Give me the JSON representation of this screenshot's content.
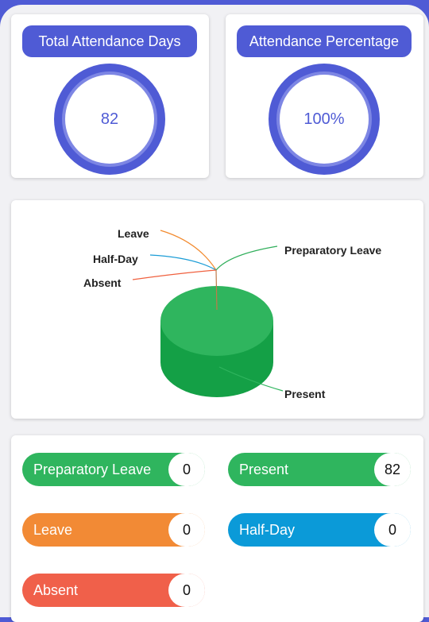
{
  "stats": [
    {
      "title": "Total Attendance Days",
      "value": "82"
    },
    {
      "title": "Attendance Percentage",
      "value": "100%"
    }
  ],
  "chart_data": {
    "type": "pie",
    "categories": [
      "Present",
      "Preparatory Leave",
      "Leave",
      "Half-Day",
      "Absent"
    ],
    "values": [
      82,
      0,
      0,
      0,
      0
    ],
    "labels": [
      "Present",
      "Preparatory Leave",
      "Leave",
      "Half-Day",
      "Absent"
    ],
    "colors": [
      "#22a94d",
      "#2fae5a",
      "#f28a2e",
      "#1a9cd6",
      "#f0603e"
    ]
  },
  "legend": [
    {
      "label": "Preparatory Leave",
      "value": "0",
      "color": "#2fb55e"
    },
    {
      "label": "Present",
      "value": "82",
      "color": "#2fb55e"
    },
    {
      "label": "Leave",
      "value": "0",
      "color": "#f28a35"
    },
    {
      "label": "Half-Day",
      "value": "0",
      "color": "#0b9ad8"
    },
    {
      "label": "Absent",
      "value": "0",
      "color": "#f0604a"
    }
  ]
}
